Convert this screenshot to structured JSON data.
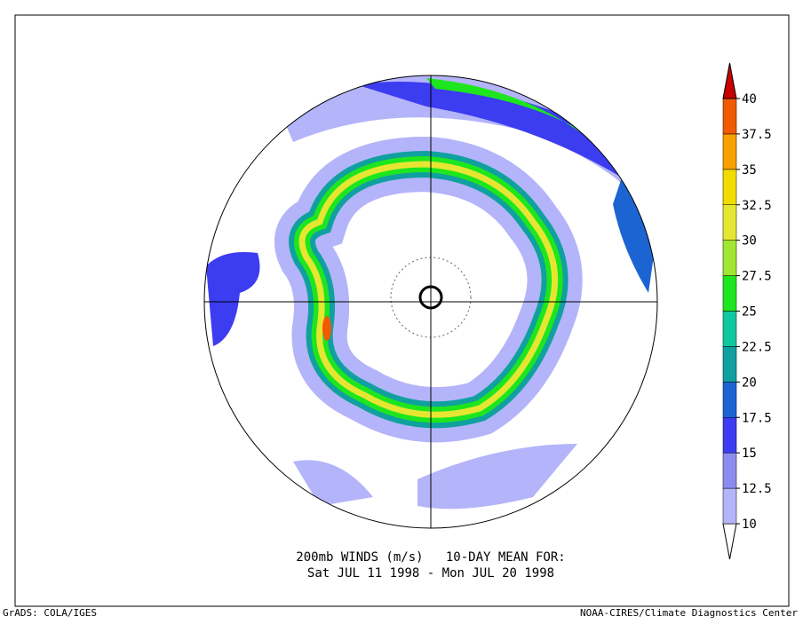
{
  "title_lines": [
    "200mb WINDS (m/s)   10-DAY MEAN FOR:",
    "Sat JUL 11 1998 - Mon JUL 20 1998"
  ],
  "footer_left": "GrADS: COLA/IGES",
  "footer_right": "NOAA-CIRES/Climate Diagnostics Center",
  "colorbar": {
    "levels": [
      10,
      12.5,
      15,
      17.5,
      20,
      22.5,
      25,
      27.5,
      30,
      32.5,
      35,
      37.5,
      40
    ],
    "colors": [
      "#ffffff",
      "#b4b4fa",
      "#8c8cf0",
      "#3c3cf0",
      "#1c64d2",
      "#10a0a0",
      "#10c8a0",
      "#1ee61e",
      "#a0e632",
      "#e6e632",
      "#f0dc00",
      "#faa000",
      "#f05a00",
      "#c80000"
    ]
  }
}
